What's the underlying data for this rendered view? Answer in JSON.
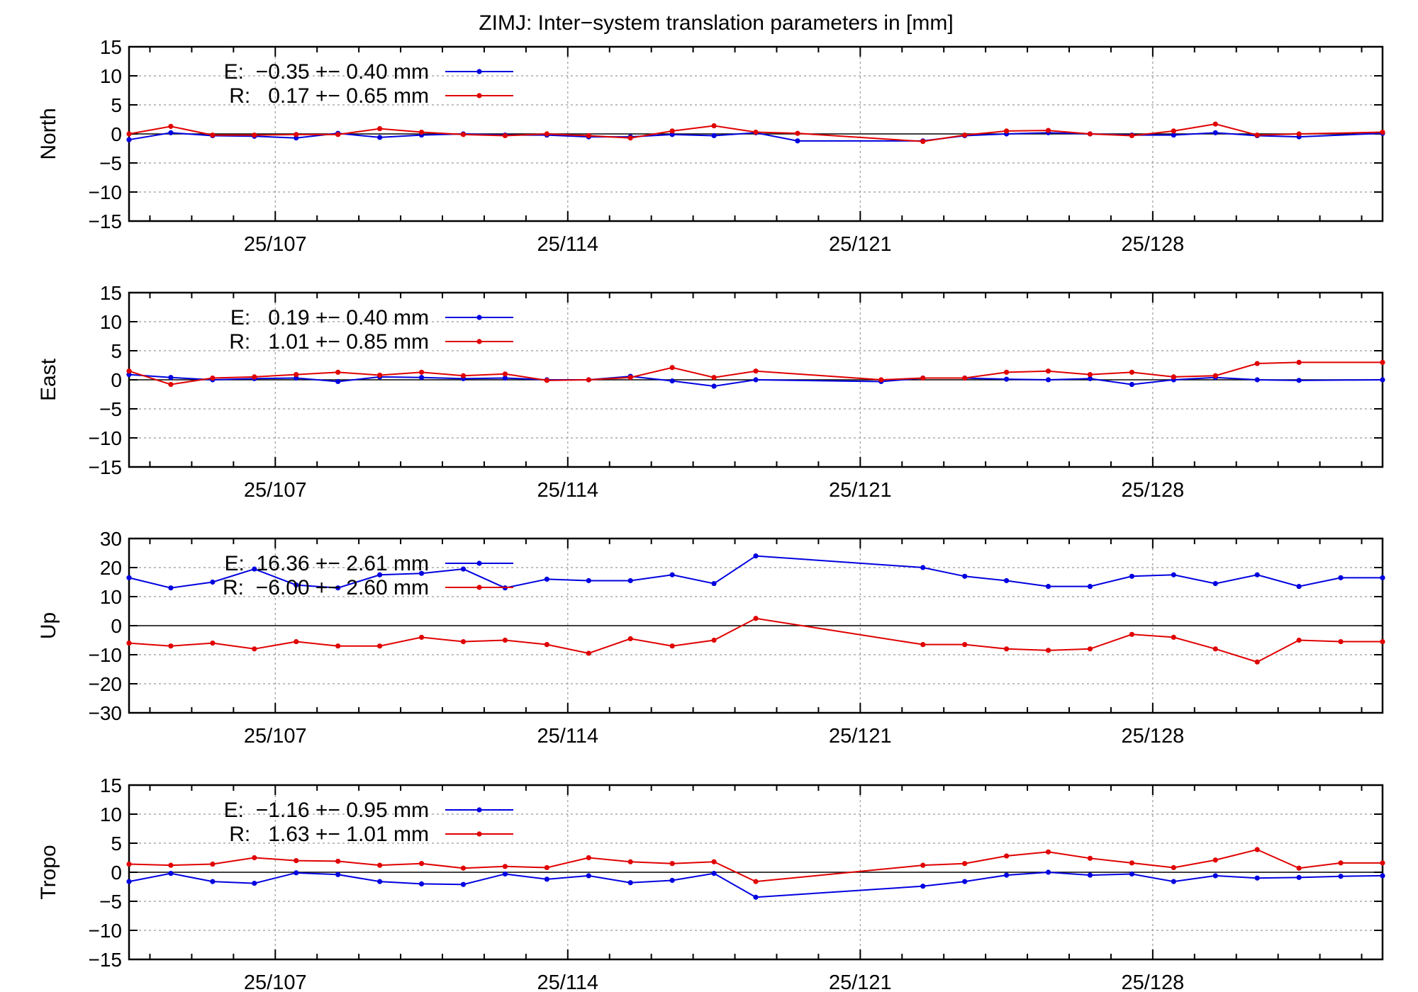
{
  "title": "ZIMJ: Inter−system translation parameters in [mm]",
  "colors": {
    "E": "#0000e0",
    "R": "#e00000",
    "axis": "#000000",
    "grid": "#999999"
  },
  "chart_data": [
    {
      "type": "line",
      "ylabel": "North",
      "xlim": [
        103.5,
        133.5
      ],
      "ylim": [
        -15,
        15
      ],
      "yticks": [
        -15,
        -10,
        -5,
        0,
        5,
        10,
        15
      ],
      "xticks": [
        {
          "pos": 107,
          "label": "25/107"
        },
        {
          "pos": 114,
          "label": "25/114"
        },
        {
          "pos": 121,
          "label": "25/121"
        },
        {
          "pos": 128,
          "label": "25/128"
        }
      ],
      "legend_position": "top-left",
      "x": [
        103.5,
        104.5,
        105.5,
        106.5,
        107.5,
        108.5,
        109.5,
        110.5,
        111.5,
        112.5,
        113.5,
        114.5,
        115.5,
        116.5,
        117.5,
        118.5,
        119.5,
        122.5,
        123.5,
        124.5,
        125.5,
        126.5,
        127.5,
        128.5,
        129.5,
        130.5,
        131.5,
        133.5
      ],
      "series": [
        {
          "name": "E",
          "legend": "E:  −0.35 +− 0.40 mm",
          "values": [
            -1.0,
            0.2,
            -0.3,
            -0.4,
            -0.7,
            0.1,
            -0.6,
            -0.2,
            0.0,
            -0.2,
            -0.2,
            -0.5,
            -0.5,
            -0.1,
            -0.3,
            0.2,
            -1.2,
            -1.2,
            -0.3,
            0.0,
            0.2,
            0.0,
            -0.2,
            -0.2,
            0.2,
            -0.3,
            -0.5,
            0.1
          ]
        },
        {
          "name": "R",
          "legend": "R:   0.17 +− 0.65 mm",
          "values": [
            0.0,
            1.3,
            -0.2,
            -0.2,
            -0.1,
            -0.1,
            0.9,
            0.3,
            -0.1,
            -0.3,
            0.0,
            -0.3,
            -0.7,
            0.5,
            1.4,
            0.3,
            0.1,
            -1.3,
            -0.2,
            0.5,
            0.6,
            0.0,
            -0.3,
            0.5,
            1.7,
            -0.2,
            0.0,
            0.3
          ]
        }
      ]
    },
    {
      "type": "line",
      "ylabel": "East",
      "xlim": [
        103.5,
        133.5
      ],
      "ylim": [
        -15,
        15
      ],
      "yticks": [
        -15,
        -10,
        -5,
        0,
        5,
        10,
        15
      ],
      "xticks": [
        {
          "pos": 107,
          "label": "25/107"
        },
        {
          "pos": 114,
          "label": "25/114"
        },
        {
          "pos": 121,
          "label": "25/121"
        },
        {
          "pos": 128,
          "label": "25/128"
        }
      ],
      "legend_position": "top-left",
      "x": [
        103.5,
        104.5,
        105.5,
        106.5,
        107.5,
        108.5,
        109.5,
        110.5,
        111.5,
        112.5,
        113.5,
        114.5,
        115.5,
        116.5,
        117.5,
        118.5,
        121.5,
        122.5,
        123.5,
        124.5,
        125.5,
        126.5,
        127.5,
        128.5,
        129.5,
        130.5,
        131.5,
        133.5
      ],
      "series": [
        {
          "name": "E",
          "legend": "E:   0.19 +− 0.40 mm",
          "values": [
            0.9,
            0.4,
            0.0,
            0.2,
            0.3,
            -0.3,
            0.5,
            0.4,
            0.2,
            0.3,
            0.0,
            0.0,
            0.6,
            -0.2,
            -1.1,
            0.0,
            -0.3,
            0.3,
            0.3,
            0.1,
            0.0,
            0.2,
            -0.8,
            0.0,
            0.4,
            0.0,
            -0.1,
            0.0
          ]
        },
        {
          "name": "R",
          "legend": "R:   1.01 +− 0.85 mm",
          "values": [
            1.5,
            -0.8,
            0.3,
            0.5,
            0.9,
            1.3,
            0.8,
            1.3,
            0.7,
            1.0,
            -0.1,
            0.0,
            0.4,
            2.1,
            0.4,
            1.5,
            0.0,
            0.3,
            0.3,
            1.3,
            1.5,
            0.9,
            1.3,
            0.5,
            0.7,
            2.8,
            3.0,
            3.0
          ]
        }
      ]
    },
    {
      "type": "line",
      "ylabel": "Up",
      "xlim": [
        103.5,
        133.5
      ],
      "ylim": [
        -30,
        30
      ],
      "yticks": [
        -30,
        -20,
        -10,
        0,
        10,
        20,
        30
      ],
      "xticks": [
        {
          "pos": 107,
          "label": "25/107"
        },
        {
          "pos": 114,
          "label": "25/114"
        },
        {
          "pos": 121,
          "label": "25/121"
        },
        {
          "pos": 128,
          "label": "25/128"
        }
      ],
      "legend_position": "top-left",
      "x": [
        103.5,
        104.5,
        105.5,
        106.5,
        107.5,
        108.5,
        109.5,
        110.5,
        111.5,
        112.5,
        113.5,
        114.5,
        115.5,
        116.5,
        117.5,
        118.5,
        122.5,
        123.5,
        124.5,
        125.5,
        126.5,
        127.5,
        128.5,
        129.5,
        130.5,
        131.5,
        132.5,
        133.5
      ],
      "series": [
        {
          "name": "E",
          "legend": "E:  16.36 +− 2.61 mm",
          "values": [
            16.5,
            13.0,
            15.0,
            19.5,
            14.0,
            13.0,
            17.5,
            18.0,
            19.5,
            13.0,
            16.0,
            15.5,
            15.5,
            17.5,
            14.5,
            24.0,
            20.0,
            17.0,
            15.5,
            13.5,
            13.5,
            17.0,
            17.5,
            14.5,
            17.5,
            13.5,
            16.5,
            16.5
          ]
        },
        {
          "name": "R",
          "legend": "R:  −6.00 +− 2.60 mm",
          "values": [
            -6.0,
            -7.0,
            -6.0,
            -8.0,
            -5.5,
            -7.0,
            -7.0,
            -4.0,
            -5.5,
            -5.0,
            -6.5,
            -9.5,
            -4.5,
            -7.0,
            -5.0,
            2.5,
            -6.5,
            -6.5,
            -8.0,
            -8.5,
            -8.0,
            -3.0,
            -4.0,
            -8.0,
            -12.5,
            -5.0,
            -5.5,
            -5.5
          ]
        }
      ]
    },
    {
      "type": "line",
      "ylabel": "Tropo",
      "xlim": [
        103.5,
        133.5
      ],
      "ylim": [
        -15,
        15
      ],
      "yticks": [
        -15,
        -10,
        -5,
        0,
        5,
        10,
        15
      ],
      "xticks": [
        {
          "pos": 107,
          "label": "25/107"
        },
        {
          "pos": 114,
          "label": "25/114"
        },
        {
          "pos": 121,
          "label": "25/121"
        },
        {
          "pos": 128,
          "label": "25/128"
        }
      ],
      "legend_position": "top-left",
      "x": [
        103.5,
        104.5,
        105.5,
        106.5,
        107.5,
        108.5,
        109.5,
        110.5,
        111.5,
        112.5,
        113.5,
        114.5,
        115.5,
        116.5,
        117.5,
        118.5,
        122.5,
        123.5,
        124.5,
        125.5,
        126.5,
        127.5,
        128.5,
        129.5,
        130.5,
        131.5,
        132.5,
        133.5
      ],
      "series": [
        {
          "name": "E",
          "legend": "E:  −1.16 +− 0.95 mm",
          "values": [
            -1.6,
            -0.2,
            -1.6,
            -1.9,
            -0.1,
            -0.4,
            -1.6,
            -2.0,
            -2.1,
            -0.3,
            -1.2,
            -0.6,
            -1.8,
            -1.4,
            -0.2,
            -4.3,
            -2.4,
            -1.6,
            -0.5,
            0.0,
            -0.5,
            -0.3,
            -1.6,
            -0.6,
            -1.0,
            -0.9,
            -0.7,
            -0.6
          ]
        },
        {
          "name": "R",
          "legend": "R:   1.63 +− 1.01 mm",
          "values": [
            1.4,
            1.2,
            1.4,
            2.5,
            2.0,
            1.9,
            1.2,
            1.5,
            0.7,
            1.0,
            0.8,
            2.5,
            1.8,
            1.5,
            1.8,
            -1.6,
            1.2,
            1.5,
            2.8,
            3.5,
            2.4,
            1.6,
            0.8,
            2.1,
            3.9,
            0.7,
            1.6,
            1.6
          ]
        }
      ]
    }
  ]
}
